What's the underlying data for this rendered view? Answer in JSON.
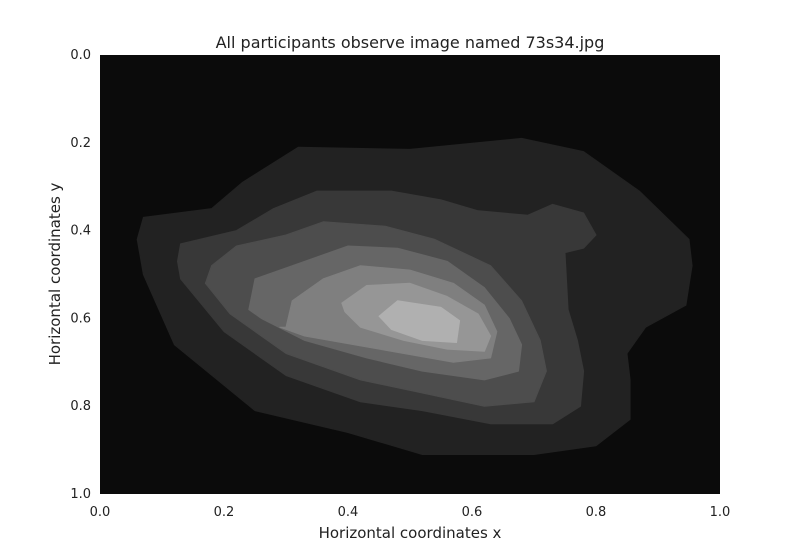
{
  "chart_data": {
    "type": "heatmap",
    "subtype": "filled-contour",
    "title": "All participants observe image named 73s34.jpg",
    "xlabel": "Horizontal coordinates x",
    "ylabel": "Horizontal coordinates y",
    "xlim": [
      0.0,
      1.0
    ],
    "ylim": [
      1.0,
      0.0
    ],
    "y_inverted": true,
    "grid": false,
    "colormap": "gray",
    "x_ticks": [
      "0.0",
      "0.2",
      "0.4",
      "0.6",
      "0.8",
      "1.0"
    ],
    "y_ticks": [
      "0.0",
      "0.2",
      "0.4",
      "0.6",
      "0.8",
      "1.0"
    ],
    "colors": {
      "background": "#0b0b0b",
      "levels": [
        "#222222",
        "#383838",
        "#4d4d4d",
        "#666666",
        "#7f7f7f",
        "#969696",
        "#b0b0b0"
      ]
    },
    "levels": [
      {
        "level": 1,
        "points": [
          [
            0.07,
            0.37
          ],
          [
            0.18,
            0.35
          ],
          [
            0.23,
            0.29
          ],
          [
            0.32,
            0.21
          ],
          [
            0.5,
            0.215
          ],
          [
            0.68,
            0.19
          ],
          [
            0.78,
            0.22
          ],
          [
            0.87,
            0.31
          ],
          [
            0.95,
            0.42
          ],
          [
            0.955,
            0.48
          ],
          [
            0.945,
            0.57
          ],
          [
            0.88,
            0.62
          ],
          [
            0.85,
            0.68
          ],
          [
            0.855,
            0.74
          ],
          [
            0.855,
            0.83
          ],
          [
            0.8,
            0.89
          ],
          [
            0.7,
            0.91
          ],
          [
            0.52,
            0.91
          ],
          [
            0.4,
            0.86
          ],
          [
            0.25,
            0.81
          ],
          [
            0.12,
            0.66
          ],
          [
            0.07,
            0.5
          ],
          [
            0.06,
            0.42
          ]
        ]
      },
      {
        "level": 2,
        "points": [
          [
            0.13,
            0.43
          ],
          [
            0.22,
            0.4
          ],
          [
            0.28,
            0.35
          ],
          [
            0.35,
            0.31
          ],
          [
            0.47,
            0.31
          ],
          [
            0.55,
            0.33
          ],
          [
            0.61,
            0.355
          ],
          [
            0.69,
            0.365
          ],
          [
            0.73,
            0.34
          ],
          [
            0.78,
            0.36
          ],
          [
            0.8,
            0.41
          ],
          [
            0.78,
            0.44
          ],
          [
            0.75,
            0.45
          ],
          [
            0.755,
            0.58
          ],
          [
            0.77,
            0.65
          ],
          [
            0.78,
            0.72
          ],
          [
            0.775,
            0.8
          ],
          [
            0.73,
            0.84
          ],
          [
            0.63,
            0.84
          ],
          [
            0.52,
            0.81
          ],
          [
            0.42,
            0.79
          ],
          [
            0.3,
            0.73
          ],
          [
            0.2,
            0.63
          ],
          [
            0.13,
            0.51
          ],
          [
            0.125,
            0.47
          ]
        ]
      },
      {
        "level": 3,
        "points": [
          [
            0.18,
            0.48
          ],
          [
            0.22,
            0.435
          ],
          [
            0.3,
            0.41
          ],
          [
            0.36,
            0.38
          ],
          [
            0.46,
            0.39
          ],
          [
            0.54,
            0.42
          ],
          [
            0.63,
            0.48
          ],
          [
            0.68,
            0.56
          ],
          [
            0.71,
            0.65
          ],
          [
            0.72,
            0.72
          ],
          [
            0.7,
            0.79
          ],
          [
            0.62,
            0.8
          ],
          [
            0.52,
            0.77
          ],
          [
            0.42,
            0.74
          ],
          [
            0.3,
            0.68
          ],
          [
            0.21,
            0.59
          ],
          [
            0.17,
            0.52
          ]
        ]
      },
      {
        "level": 4,
        "points": [
          [
            0.24,
            0.58
          ],
          [
            0.25,
            0.51
          ],
          [
            0.33,
            0.47
          ],
          [
            0.4,
            0.435
          ],
          [
            0.48,
            0.44
          ],
          [
            0.56,
            0.47
          ],
          [
            0.62,
            0.53
          ],
          [
            0.66,
            0.6
          ],
          [
            0.68,
            0.66
          ],
          [
            0.675,
            0.72
          ],
          [
            0.62,
            0.74
          ],
          [
            0.52,
            0.72
          ],
          [
            0.43,
            0.69
          ],
          [
            0.33,
            0.65
          ],
          [
            0.26,
            0.6
          ]
        ]
      },
      {
        "level": 5,
        "points": [
          [
            0.3,
            0.62
          ],
          [
            0.31,
            0.56
          ],
          [
            0.36,
            0.51
          ],
          [
            0.42,
            0.48
          ],
          [
            0.5,
            0.49
          ],
          [
            0.57,
            0.52
          ],
          [
            0.62,
            0.57
          ],
          [
            0.64,
            0.63
          ],
          [
            0.63,
            0.69
          ],
          [
            0.57,
            0.7
          ],
          [
            0.49,
            0.68
          ],
          [
            0.41,
            0.66
          ],
          [
            0.33,
            0.64
          ],
          [
            0.29,
            0.62
          ]
        ]
      },
      {
        "level": 6,
        "points": [
          [
            0.39,
            0.565
          ],
          [
            0.43,
            0.525
          ],
          [
            0.5,
            0.52
          ],
          [
            0.56,
            0.55
          ],
          [
            0.61,
            0.59
          ],
          [
            0.63,
            0.64
          ],
          [
            0.62,
            0.675
          ],
          [
            0.56,
            0.67
          ],
          [
            0.49,
            0.65
          ],
          [
            0.42,
            0.62
          ],
          [
            0.395,
            0.585
          ]
        ]
      },
      {
        "level": 7,
        "points": [
          [
            0.45,
            0.595
          ],
          [
            0.48,
            0.56
          ],
          [
            0.55,
            0.575
          ],
          [
            0.58,
            0.605
          ],
          [
            0.575,
            0.655
          ],
          [
            0.52,
            0.65
          ],
          [
            0.47,
            0.625
          ]
        ]
      }
    ]
  }
}
